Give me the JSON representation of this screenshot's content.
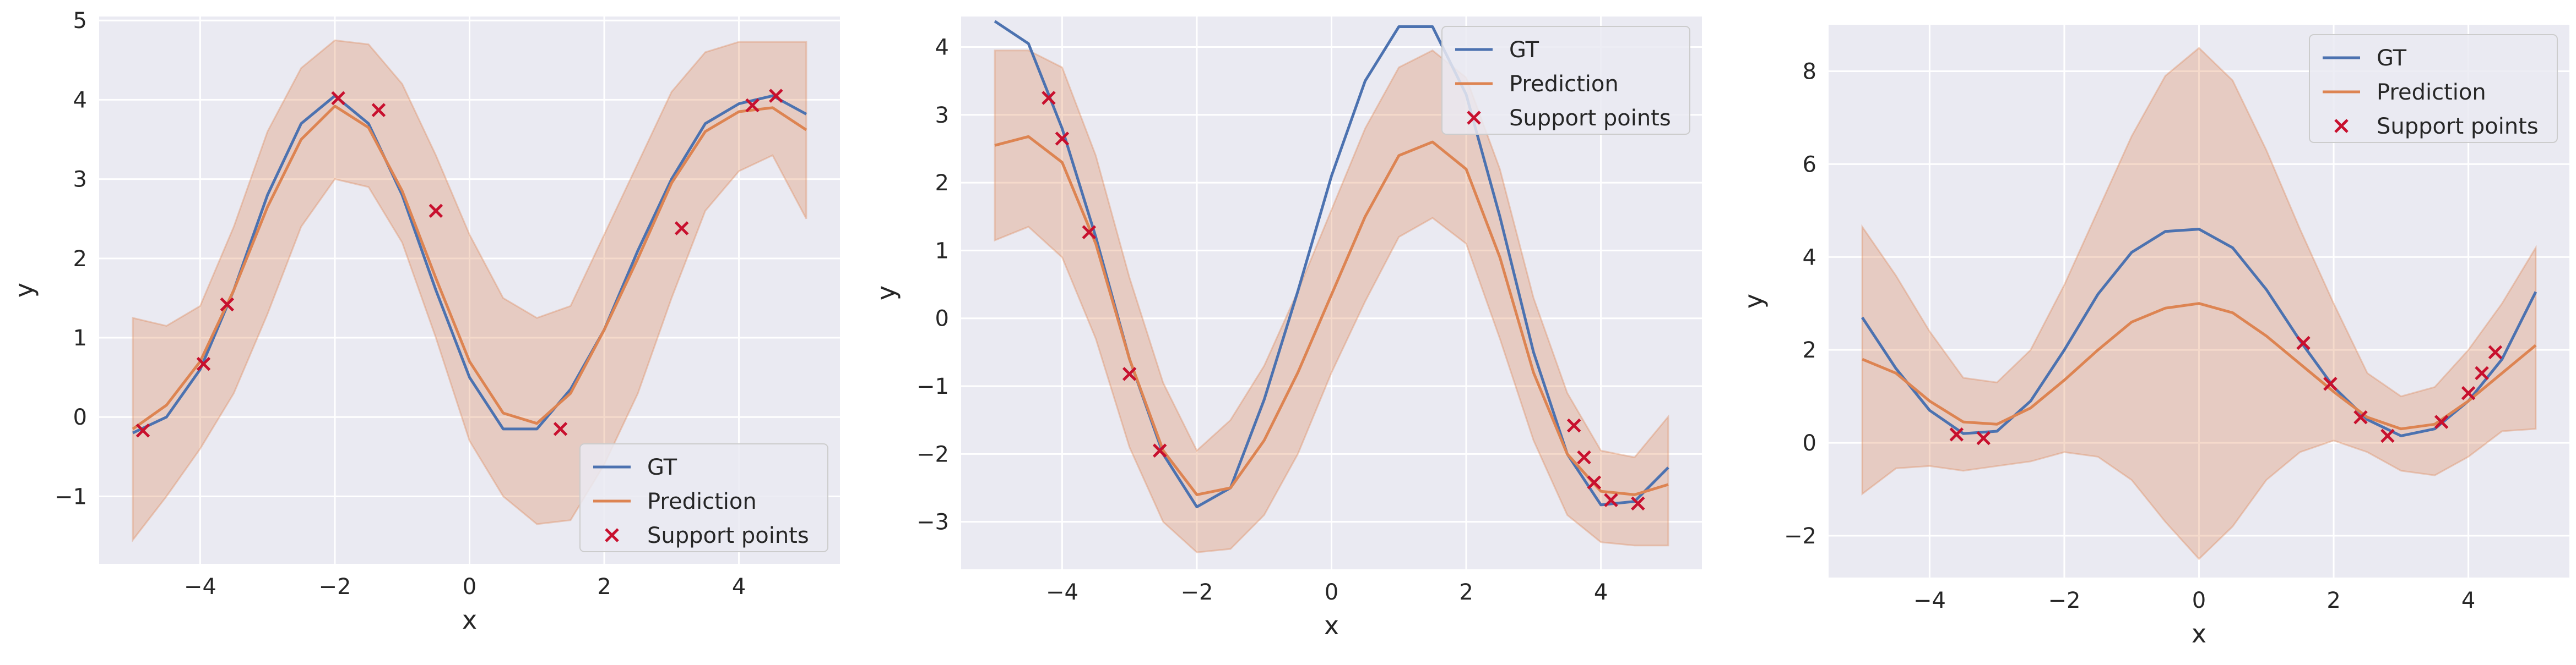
{
  "chart_data": [
    {
      "type": "line",
      "xlabel": "x",
      "ylabel": "y",
      "xlim": [
        -5.5,
        5.5
      ],
      "ylim": [
        -1.85,
        5.05
      ],
      "xticks": [
        -4,
        -2,
        0,
        2,
        4
      ],
      "yticks": [
        -1,
        0,
        1,
        2,
        3,
        4,
        5
      ],
      "legend_position": "lower-right",
      "legend": [
        "GT",
        "Prediction",
        "Support points"
      ],
      "series": [
        {
          "name": "GT",
          "x": [
            -5,
            -4.5,
            -4,
            -3.5,
            -3,
            -2.5,
            -2,
            -1.5,
            -1,
            -0.5,
            0,
            0.5,
            1,
            1.5,
            2,
            2.5,
            3,
            3.5,
            4,
            4.5,
            5
          ],
          "values": [
            -0.2,
            0.0,
            0.6,
            1.6,
            2.8,
            3.7,
            4.05,
            3.7,
            2.8,
            1.6,
            0.5,
            -0.15,
            -0.15,
            0.35,
            1.1,
            2.1,
            3.0,
            3.7,
            3.95,
            4.05,
            3.82
          ]
        },
        {
          "name": "Prediction",
          "x": [
            -5,
            -4.5,
            -4,
            -3.5,
            -3,
            -2.5,
            -2,
            -1.5,
            -1,
            -0.5,
            0,
            0.5,
            1,
            1.5,
            2,
            2.5,
            3,
            3.5,
            4,
            4.5,
            5
          ],
          "values": [
            -0.15,
            0.15,
            0.7,
            1.6,
            2.65,
            3.5,
            3.92,
            3.65,
            2.85,
            1.75,
            0.7,
            0.05,
            -0.08,
            0.3,
            1.1,
            2.0,
            2.95,
            3.6,
            3.85,
            3.9,
            3.62
          ],
          "lower": [
            -1.55,
            -1.0,
            -0.4,
            0.3,
            1.3,
            2.4,
            3.0,
            2.9,
            2.2,
            1.0,
            -0.3,
            -1.0,
            -1.35,
            -1.3,
            -0.6,
            0.3,
            1.5,
            2.6,
            3.1,
            3.3,
            2.5
          ],
          "upper": [
            1.25,
            1.15,
            1.4,
            2.4,
            3.6,
            4.4,
            4.75,
            4.7,
            4.2,
            3.3,
            2.3,
            1.5,
            1.25,
            1.4,
            2.3,
            3.2,
            4.1,
            4.6,
            4.73,
            4.73,
            4.73
          ]
        }
      ],
      "support_points": {
        "name": "Support points",
        "x": [
          -4.85,
          -3.95,
          -3.6,
          -1.95,
          -1.35,
          -0.5,
          1.35,
          3.15,
          4.2,
          4.55
        ],
        "values": [
          -0.17,
          0.67,
          1.42,
          4.02,
          3.87,
          2.6,
          -0.15,
          2.38,
          3.93,
          4.05
        ]
      }
    },
    {
      "type": "line",
      "xlabel": "x",
      "ylabel": "y",
      "xlim": [
        -5.5,
        5.5
      ],
      "ylim": [
        -3.7,
        4.45
      ],
      "xticks": [
        -4,
        -2,
        0,
        2,
        4
      ],
      "yticks": [
        -3,
        -2,
        -1,
        0,
        1,
        2,
        3,
        4
      ],
      "legend_position": "upper-right",
      "legend": [
        "GT",
        "Prediction",
        "Support points"
      ],
      "series": [
        {
          "name": "GT",
          "x": [
            -5,
            -4.5,
            -4,
            -3.5,
            -3,
            -2.5,
            -2,
            -1.5,
            -1,
            -0.5,
            0,
            0.5,
            1,
            1.5,
            2,
            2.5,
            3,
            3.5,
            4,
            4.5,
            5
          ],
          "values": [
            4.38,
            4.05,
            2.8,
            1.2,
            -0.6,
            -2.0,
            -2.78,
            -2.5,
            -1.2,
            0.4,
            2.1,
            3.5,
            4.3,
            4.3,
            3.3,
            1.5,
            -0.5,
            -2.0,
            -2.75,
            -2.7,
            -2.2
          ]
        },
        {
          "name": "Prediction",
          "x": [
            -5,
            -4.5,
            -4,
            -3.5,
            -3,
            -2.5,
            -2,
            -1.5,
            -1,
            -0.5,
            0,
            0.5,
            1,
            1.5,
            2,
            2.5,
            3,
            3.5,
            4,
            4.5,
            5
          ],
          "values": [
            2.55,
            2.68,
            2.3,
            1.1,
            -0.6,
            -1.95,
            -2.6,
            -2.5,
            -1.8,
            -0.8,
            0.35,
            1.5,
            2.4,
            2.6,
            2.2,
            0.9,
            -0.8,
            -2.0,
            -2.55,
            -2.6,
            -2.45
          ],
          "lower": [
            1.15,
            1.35,
            0.9,
            -0.3,
            -1.9,
            -3.0,
            -3.45,
            -3.4,
            -2.9,
            -2.0,
            -0.8,
            0.25,
            1.2,
            1.48,
            1.1,
            -0.3,
            -1.8,
            -2.9,
            -3.3,
            -3.35,
            -3.35
          ],
          "upper": [
            3.95,
            3.95,
            3.7,
            2.4,
            0.6,
            -0.95,
            -1.95,
            -1.5,
            -0.7,
            0.4,
            1.6,
            2.8,
            3.7,
            3.95,
            3.55,
            2.2,
            0.3,
            -1.1,
            -1.95,
            -2.05,
            -1.45
          ]
        }
      ],
      "support_points": {
        "name": "Support points",
        "x": [
          -4.2,
          -4.0,
          -3.6,
          -3.0,
          -2.55,
          3.6,
          3.75,
          3.9,
          4.15,
          4.55
        ],
        "values": [
          3.25,
          2.65,
          1.27,
          -0.82,
          -1.95,
          -1.58,
          -2.05,
          -2.42,
          -2.68,
          -2.73
        ]
      }
    },
    {
      "type": "line",
      "xlabel": "x",
      "ylabel": "y",
      "xlim": [
        -5.5,
        5.5
      ],
      "ylim": [
        -2.9,
        9.0
      ],
      "xticks": [
        -4,
        -2,
        0,
        2,
        4
      ],
      "yticks": [
        -2,
        0,
        2,
        4,
        6,
        8
      ],
      "legend_position": "upper-right",
      "legend": [
        "GT",
        "Prediction",
        "Support points"
      ],
      "series": [
        {
          "name": "GT",
          "x": [
            -5,
            -4.5,
            -4,
            -3.5,
            -3,
            -2.5,
            -2,
            -1.5,
            -1,
            -0.5,
            0,
            0.5,
            1,
            1.5,
            2,
            2.5,
            3,
            3.5,
            4,
            4.5,
            5
          ],
          "values": [
            2.7,
            1.6,
            0.7,
            0.2,
            0.25,
            0.9,
            2.0,
            3.2,
            4.1,
            4.55,
            4.6,
            4.2,
            3.3,
            2.2,
            1.2,
            0.5,
            0.15,
            0.3,
            0.9,
            1.8,
            3.25
          ]
        },
        {
          "name": "Prediction",
          "x": [
            -5,
            -4.5,
            -4,
            -3.5,
            -3,
            -2.5,
            -2,
            -1.5,
            -1,
            -0.5,
            0,
            0.5,
            1,
            1.5,
            2,
            2.5,
            3,
            3.5,
            4,
            4.5,
            5
          ],
          "values": [
            1.8,
            1.5,
            0.9,
            0.45,
            0.4,
            0.75,
            1.35,
            2.0,
            2.6,
            2.9,
            3.0,
            2.8,
            2.3,
            1.7,
            1.1,
            0.55,
            0.3,
            0.4,
            0.9,
            1.5,
            2.1
          ],
          "lower": [
            -1.1,
            -0.55,
            -0.5,
            -0.6,
            -0.5,
            -0.4,
            -0.2,
            -0.3,
            -0.8,
            -1.7,
            -2.5,
            -1.8,
            -0.8,
            -0.2,
            0.05,
            -0.2,
            -0.6,
            -0.7,
            -0.3,
            0.25,
            0.3
          ],
          "upper": [
            4.65,
            3.6,
            2.4,
            1.4,
            1.3,
            2.0,
            3.4,
            5.0,
            6.6,
            7.9,
            8.5,
            7.8,
            6.3,
            4.6,
            3.0,
            1.5,
            1.0,
            1.2,
            2.0,
            3.0,
            4.2
          ]
        }
      ],
      "support_points": {
        "name": "Support points",
        "x": [
          -3.6,
          -3.2,
          1.55,
          1.95,
          2.4,
          2.8,
          3.6,
          4.0,
          4.2,
          4.4
        ],
        "values": [
          0.18,
          0.1,
          2.15,
          1.27,
          0.55,
          0.15,
          0.45,
          1.07,
          1.5,
          1.95
        ]
      }
    }
  ]
}
